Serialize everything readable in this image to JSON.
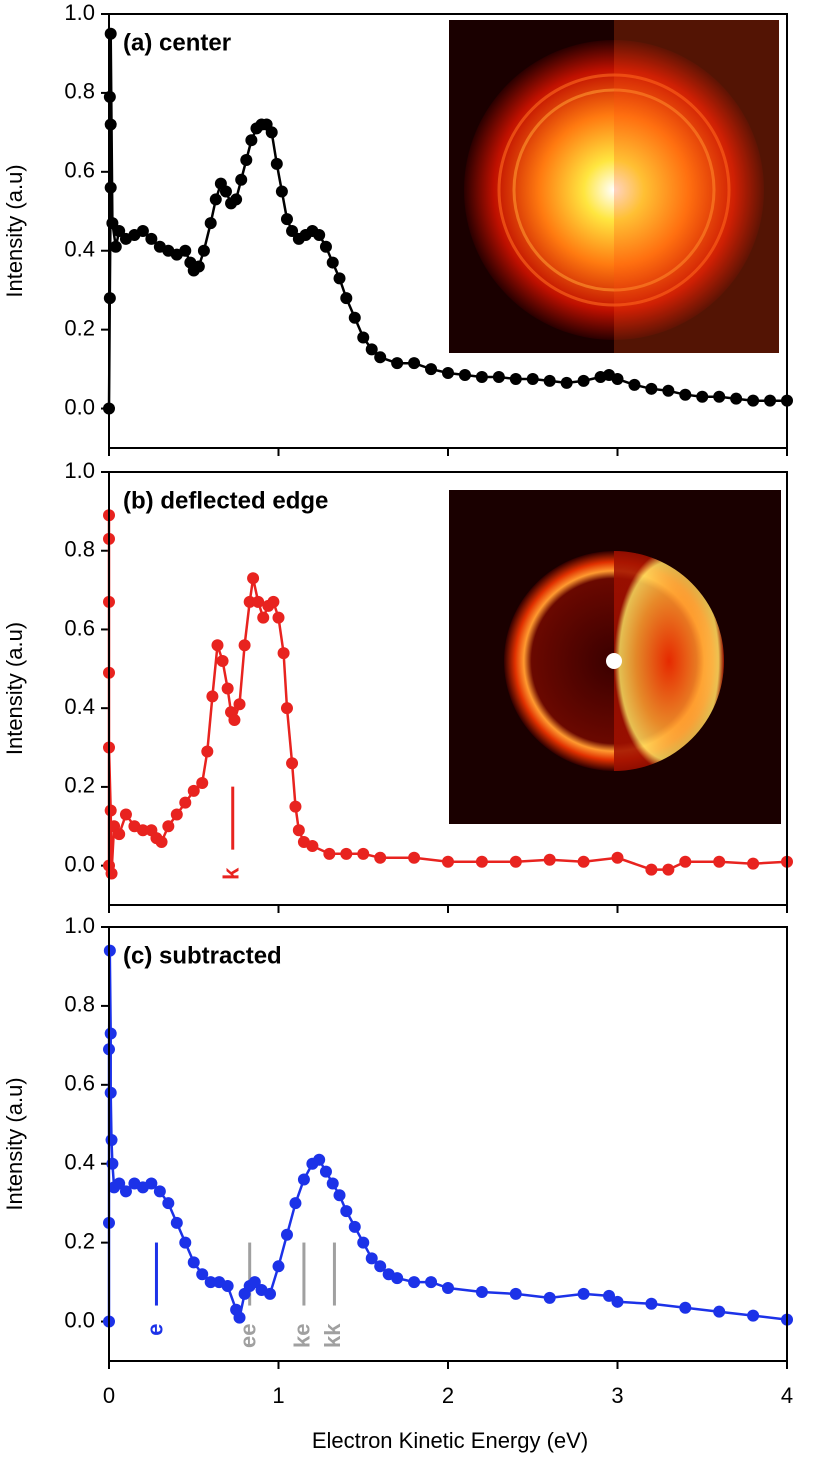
{
  "chart_data": [
    {
      "type": "line",
      "title": "(a) center",
      "ylabel": "Intensity (a.u)",
      "ylim": [
        -0.1,
        1.0
      ],
      "xlim": [
        0,
        4
      ],
      "yticks": [
        {
          "value": 0,
          "label": "0.0"
        },
        0.2,
        0.4,
        0.6,
        0.8,
        {
          "value": 1,
          "label": "1.0"
        }
      ],
      "xticks": [
        0,
        1,
        2,
        3,
        4
      ],
      "series": [
        {
          "color": "#000000",
          "x": [
            0,
            0.005,
            0.01,
            0.01,
            0.005,
            0.01,
            0.02,
            0.04,
            0.06,
            0.1,
            0.15,
            0.2,
            0.25,
            0.3,
            0.35,
            0.4,
            0.45,
            0.48,
            0.5,
            0.53,
            0.56,
            0.6,
            0.63,
            0.66,
            0.69,
            0.72,
            0.75,
            0.78,
            0.81,
            0.84,
            0.87,
            0.9,
            0.93,
            0.96,
            0.99,
            1.02,
            1.05,
            1.08,
            1.12,
            1.16,
            1.2,
            1.24,
            1.28,
            1.32,
            1.36,
            1.4,
            1.45,
            1.5,
            1.55,
            1.6,
            1.7,
            1.8,
            1.9,
            2.0,
            2.1,
            2.2,
            2.3,
            2.4,
            2.5,
            2.6,
            2.7,
            2.8,
            2.9,
            2.95,
            3.0,
            3.1,
            3.2,
            3.3,
            3.4,
            3.5,
            3.6,
            3.7,
            3.8,
            3.9,
            4.0
          ],
          "values": [
            0,
            0.28,
            0.56,
            0.72,
            0.79,
            0.95,
            0.47,
            0.41,
            0.45,
            0.43,
            0.44,
            0.45,
            0.43,
            0.41,
            0.4,
            0.39,
            0.4,
            0.37,
            0.35,
            0.36,
            0.4,
            0.47,
            0.53,
            0.57,
            0.55,
            0.52,
            0.53,
            0.58,
            0.63,
            0.68,
            0.71,
            0.72,
            0.72,
            0.7,
            0.62,
            0.55,
            0.48,
            0.45,
            0.43,
            0.44,
            0.45,
            0.44,
            0.41,
            0.37,
            0.33,
            0.28,
            0.23,
            0.18,
            0.15,
            0.13,
            0.115,
            0.115,
            0.1,
            0.09,
            0.085,
            0.08,
            0.08,
            0.075,
            0.075,
            0.07,
            0.065,
            0.07,
            0.08,
            0.085,
            0.075,
            0.06,
            0.05,
            0.045,
            0.035,
            0.03,
            0.03,
            0.025,
            0.02,
            0.02,
            0.02
          ]
        }
      ]
    },
    {
      "type": "line",
      "title": "(b) deflected edge",
      "ylabel": "Intensity (a.u)",
      "ylim": [
        -0.1,
        1.0
      ],
      "xlim": [
        0,
        4
      ],
      "yticks": [
        {
          "value": 0,
          "label": "0.0"
        },
        0.2,
        0.4,
        0.6,
        0.8,
        {
          "value": 1,
          "label": "1.0"
        }
      ],
      "xticks": [
        0,
        1,
        2,
        3,
        4
      ],
      "annotations": [
        {
          "text": "k",
          "x": 0.73,
          "color": "#e8231f"
        }
      ],
      "series": [
        {
          "color": "#e8231f",
          "x": [
            0,
            0,
            0,
            0,
            0,
            0,
            0.01,
            0.015,
            0.03,
            0.06,
            0.1,
            0.15,
            0.2,
            0.25,
            0.28,
            0.31,
            0.35,
            0.4,
            0.45,
            0.5,
            0.55,
            0.58,
            0.61,
            0.64,
            0.67,
            0.7,
            0.72,
            0.74,
            0.77,
            0.8,
            0.83,
            0.85,
            0.88,
            0.91,
            0.94,
            0.97,
            1.0,
            1.03,
            1.05,
            1.08,
            1.1,
            1.12,
            1.15,
            1.2,
            1.3,
            1.4,
            1.5,
            1.6,
            1.8,
            2.0,
            2.2,
            2.4,
            2.6,
            2.8,
            3.0,
            3.2,
            3.3,
            3.4,
            3.6,
            3.8,
            4.0
          ],
          "values": [
            0,
            0.83,
            0.89,
            0.67,
            0.49,
            0.3,
            0.14,
            -0.02,
            0.1,
            0.08,
            0.13,
            0.1,
            0.09,
            0.09,
            0.07,
            0.06,
            0.1,
            0.13,
            0.16,
            0.19,
            0.21,
            0.29,
            0.43,
            0.56,
            0.52,
            0.45,
            0.39,
            0.37,
            0.41,
            0.56,
            0.67,
            0.73,
            0.67,
            0.63,
            0.66,
            0.67,
            0.63,
            0.54,
            0.4,
            0.26,
            0.15,
            0.09,
            0.06,
            0.05,
            0.03,
            0.03,
            0.03,
            0.02,
            0.02,
            0.01,
            0.01,
            0.01,
            0.015,
            0.01,
            0.02,
            -0.01,
            -0.01,
            0.01,
            0.01,
            0.005,
            0.01
          ]
        }
      ]
    },
    {
      "type": "line",
      "title": "(c) subtracted",
      "ylabel": "Intensity (a.u)",
      "xlabel": "Electron Kinetic Energy (eV)",
      "ylim": [
        -0.1,
        1.0
      ],
      "xlim": [
        0,
        4
      ],
      "yticks": [
        {
          "value": 0,
          "label": "0.0"
        },
        0.2,
        0.4,
        0.6,
        0.8,
        {
          "value": 1,
          "label": "1.0"
        }
      ],
      "xticks": [
        0,
        1,
        2,
        3,
        4
      ],
      "annotations": [
        {
          "text": "e",
          "x": 0.28,
          "color": "#1c32e8"
        },
        {
          "text": "ee",
          "x": 0.83,
          "color": "#a0a0a0"
        },
        {
          "text": "ke",
          "x": 1.15,
          "color": "#a0a0a0"
        },
        {
          "text": "kk",
          "x": 1.33,
          "color": "#a0a0a0"
        }
      ],
      "series": [
        {
          "color": "#1c32e8",
          "x": [
            0,
            0,
            0,
            0.005,
            0.01,
            0.01,
            0.015,
            0.02,
            0.03,
            0.06,
            0.1,
            0.15,
            0.2,
            0.25,
            0.3,
            0.35,
            0.4,
            0.45,
            0.5,
            0.55,
            0.6,
            0.65,
            0.7,
            0.75,
            0.77,
            0.8,
            0.83,
            0.86,
            0.9,
            0.95,
            1.0,
            1.05,
            1.1,
            1.15,
            1.2,
            1.24,
            1.28,
            1.32,
            1.36,
            1.4,
            1.45,
            1.5,
            1.55,
            1.6,
            1.65,
            1.7,
            1.8,
            1.9,
            2.0,
            2.2,
            2.4,
            2.6,
            2.8,
            2.95,
            3.0,
            3.2,
            3.4,
            3.6,
            3.8,
            4.0
          ],
          "values": [
            0,
            0.25,
            0.69,
            0.94,
            0.73,
            0.58,
            0.46,
            0.4,
            0.34,
            0.35,
            0.33,
            0.35,
            0.34,
            0.35,
            0.33,
            0.3,
            0.25,
            0.2,
            0.15,
            0.12,
            0.1,
            0.1,
            0.09,
            0.03,
            0.01,
            0.07,
            0.09,
            0.1,
            0.08,
            0.07,
            0.14,
            0.22,
            0.3,
            0.36,
            0.4,
            0.41,
            0.38,
            0.35,
            0.32,
            0.28,
            0.24,
            0.2,
            0.16,
            0.14,
            0.12,
            0.11,
            0.1,
            0.1,
            0.085,
            0.075,
            0.07,
            0.06,
            0.07,
            0.065,
            0.05,
            0.045,
            0.035,
            0.025,
            0.015,
            0.005
          ]
        }
      ]
    }
  ]
}
